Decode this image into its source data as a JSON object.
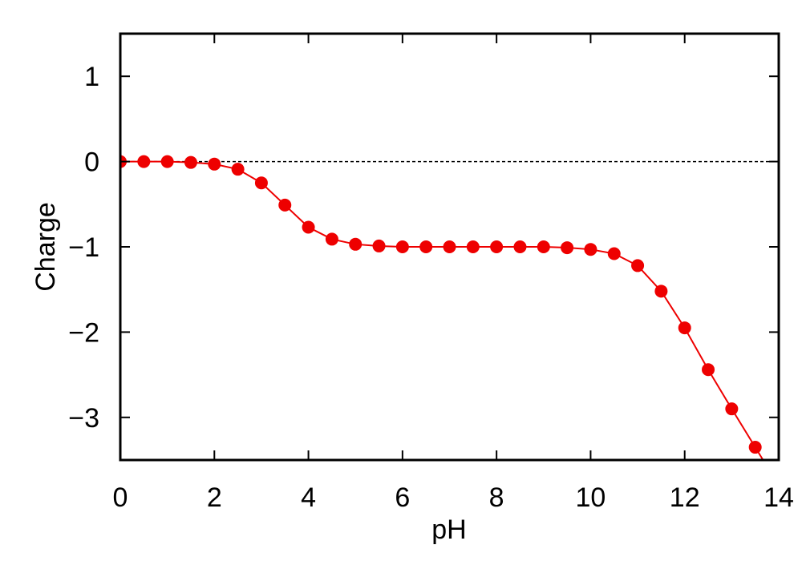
{
  "chart_data": {
    "type": "line",
    "title": "",
    "xlabel": "pH",
    "ylabel": "Charge",
    "xlim": [
      0,
      14
    ],
    "ylim": [
      -3.5,
      1.5
    ],
    "xticks": [
      0,
      2,
      4,
      6,
      8,
      10,
      12,
      14
    ],
    "yticks": [
      1,
      0,
      -1,
      -2,
      -3
    ],
    "xtick_labels": [
      "0",
      "2",
      "4",
      "6",
      "8",
      "10",
      "12",
      "14"
    ],
    "ytick_labels": [
      "1",
      "0",
      "−1",
      "−2",
      "−3"
    ],
    "grid": false,
    "reference_line": {
      "y": 0,
      "style": "dashed",
      "color": "#000000"
    },
    "series": [
      {
        "color": "#ee0000",
        "marker": "circle",
        "x": [
          0,
          0.5,
          1,
          1.5,
          2,
          2.5,
          3,
          3.5,
          4,
          4.5,
          5,
          5.5,
          6,
          6.5,
          7,
          7.5,
          8,
          8.5,
          9,
          9.5,
          10,
          10.5,
          11,
          11.5,
          12,
          12.5,
          13,
          13.5
        ],
        "y": [
          0,
          0,
          0,
          -0.01,
          -0.03,
          -0.09,
          -0.25,
          -0.51,
          -0.77,
          -0.91,
          -0.97,
          -0.99,
          -1.0,
          -1.0,
          -1.0,
          -1.0,
          -1.0,
          -1.0,
          -1.0,
          -1.01,
          -1.03,
          -1.08,
          -1.22,
          -1.52,
          -1.95,
          -2.44,
          -2.9,
          -3.35
        ]
      }
    ]
  }
}
